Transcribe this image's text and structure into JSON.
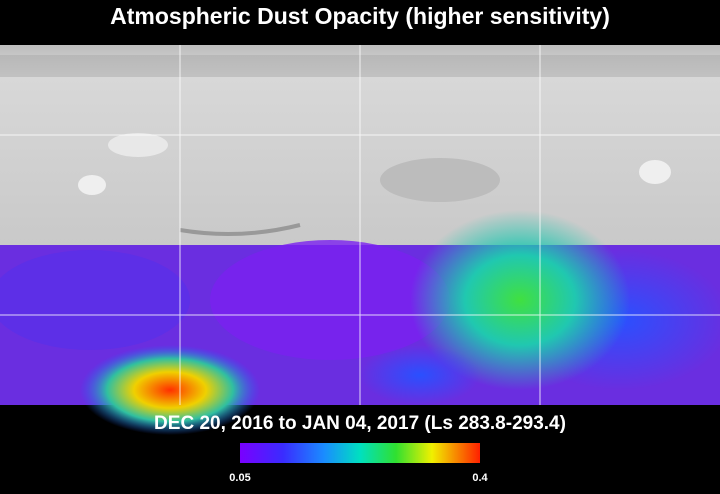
{
  "title": "Atmospheric Dust Opacity (higher sensitivity)",
  "subtitle": "DEC 20, 2016 to JAN 04, 2017 (Ls 283.8-293.4)",
  "colorbar": {
    "min": 0.05,
    "max": 0.4
  }
}
